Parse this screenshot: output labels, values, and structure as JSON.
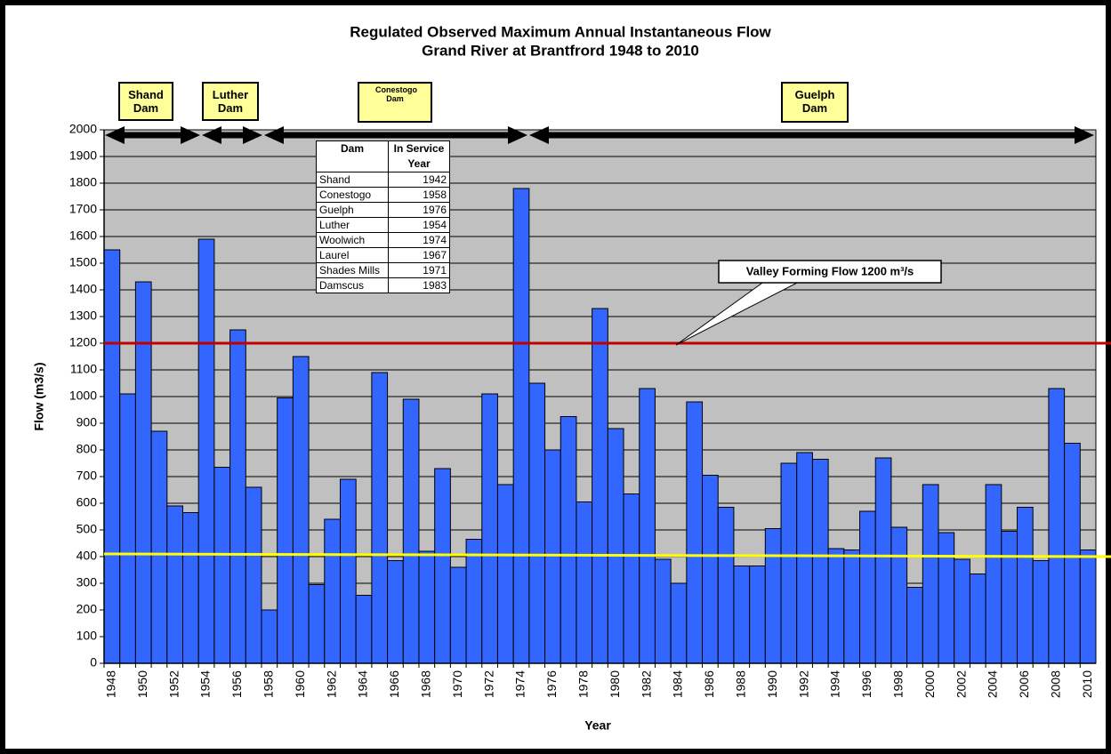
{
  "chart_data": {
    "type": "bar",
    "title": [
      "Regulated Observed Maximum Annual Instantaneous Flow",
      "Grand River at Brantfrord 1948 to 2010"
    ],
    "xlabel": "Year",
    "ylabel": "Flow (m3/s)",
    "categories": [
      "1948",
      null,
      "1950",
      null,
      "1952",
      null,
      "1954",
      null,
      "1956",
      null,
      "1958",
      null,
      "1960",
      null,
      "1962",
      null,
      "1964",
      null,
      "1966",
      null,
      "1968",
      null,
      "1970",
      null,
      "1972",
      null,
      "1974",
      null,
      "1976",
      null,
      "1978",
      null,
      "1980",
      null,
      "1982",
      null,
      "1984",
      null,
      "1986",
      null,
      "1988",
      null,
      "1990",
      null,
      "1992",
      null,
      "1994",
      null,
      "1996",
      null,
      "1998",
      null,
      "2000",
      null,
      "2002",
      null,
      "2004",
      null,
      "2006",
      null,
      "2008",
      null,
      "2010"
    ],
    "values": [
      1550,
      1010,
      1430,
      870,
      590,
      565,
      1590,
      735,
      1250,
      660,
      200,
      995,
      1150,
      295,
      540,
      690,
      255,
      1090,
      385,
      990,
      420,
      730,
      360,
      465,
      1010,
      670,
      1780,
      1050,
      800,
      925,
      605,
      1330,
      880,
      635,
      1030,
      390,
      300,
      980,
      705,
      585,
      365,
      365,
      505,
      750,
      790,
      765,
      430,
      425,
      570,
      770,
      510,
      285,
      670,
      490,
      390,
      335,
      670,
      495,
      585,
      385,
      1030,
      825,
      425
    ],
    "color": "#3366ff",
    "ylim": [
      0,
      2000
    ],
    "yticks": [
      0,
      100,
      200,
      300,
      400,
      500,
      600,
      700,
      800,
      900,
      1000,
      1100,
      1200,
      1300,
      1400,
      1500,
      1600,
      1700,
      1800,
      1900,
      2000
    ],
    "grid": true,
    "reference_lines": [
      {
        "color": "#c00000",
        "start": 1200,
        "end": 1200
      },
      {
        "color": "#ffff00",
        "start": 410,
        "end": 400
      }
    ],
    "annotation": "Valley Forming Flow 1200 m³/s",
    "dams": [
      "Shand Dam",
      "Luther Dam",
      "Conestogo Dam",
      "Guelph Dam"
    ],
    "table": {
      "header": [
        "Dam",
        "In Service Year"
      ],
      "rows": [
        [
          "Shand",
          1942
        ],
        [
          "Conestogo",
          1958
        ],
        [
          "Guelph",
          1976
        ],
        [
          "Luther",
          1954
        ],
        [
          "Woolwich",
          1974
        ],
        [
          "Laurel",
          1967
        ],
        [
          "Shades Mills",
          1971
        ],
        [
          "Damscus",
          1983
        ]
      ]
    }
  }
}
